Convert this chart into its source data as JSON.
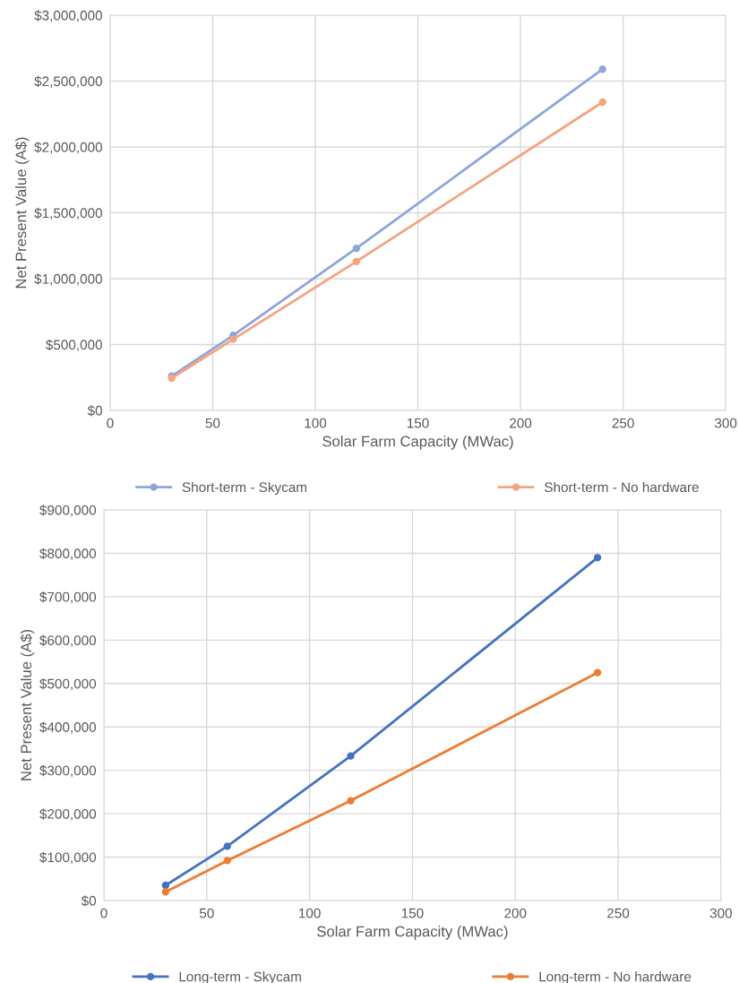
{
  "chart_data": [
    {
      "type": "line",
      "xlabel": "Solar Farm Capacity (MWac)",
      "ylabel": "Net Present Value (A$)",
      "x": [
        30,
        60,
        120,
        240
      ],
      "series": [
        {
          "name": "Short-term - Skycam",
          "color": "#8ea5dc",
          "values": [
            260000,
            570000,
            1230000,
            2590000
          ]
        },
        {
          "name": "Short-term - No hardware",
          "color": "#f4a47e",
          "values": [
            245000,
            540000,
            1130000,
            2340000
          ]
        }
      ],
      "xlim": [
        0,
        300
      ],
      "xticks": [
        0,
        50,
        100,
        150,
        200,
        250,
        300
      ],
      "ylim": [
        0,
        3000000
      ],
      "yticks": [
        {
          "value": 0,
          "label": "$0"
        },
        {
          "value": 500000,
          "label": "$500,000"
        },
        {
          "value": 1000000,
          "label": "$1,000,000"
        },
        {
          "value": 1500000,
          "label": "$1,500,000"
        },
        {
          "value": 2000000,
          "label": "$2,000,000"
        },
        {
          "value": 2500000,
          "label": "$2,500,000"
        },
        {
          "value": 3000000,
          "label": "$3,000,000"
        }
      ],
      "grid": true,
      "legend": "bottom",
      "marker": "circle",
      "line_style": "solid"
    },
    {
      "type": "line",
      "xlabel": "Solar Farm Capacity (MWac)",
      "ylabel": "Net Present Value (A$)",
      "x": [
        30,
        60,
        120,
        240
      ],
      "series": [
        {
          "name": "Long-term - Skycam",
          "color": "#4472c4",
          "values": [
            35000,
            125000,
            333000,
            790000
          ]
        },
        {
          "name": "Long-term - No hardware",
          "color": "#ed7d31",
          "values": [
            20000,
            92000,
            230000,
            525000
          ]
        }
      ],
      "xlim": [
        0,
        300
      ],
      "xticks": [
        0,
        50,
        100,
        150,
        200,
        250,
        300
      ],
      "ylim": [
        0,
        900000
      ],
      "yticks": [
        {
          "value": 0,
          "label": "$0"
        },
        {
          "value": 100000,
          "label": "$100,000"
        },
        {
          "value": 200000,
          "label": "$200,000"
        },
        {
          "value": 300000,
          "label": "$300,000"
        },
        {
          "value": 400000,
          "label": "$400,000"
        },
        {
          "value": 500000,
          "label": "$500,000"
        },
        {
          "value": 600000,
          "label": "$600,000"
        },
        {
          "value": 700000,
          "label": "$700,000"
        },
        {
          "value": 800000,
          "label": "$800,000"
        },
        {
          "value": 900000,
          "label": "$900,000"
        }
      ],
      "grid": true,
      "legend": "bottom",
      "marker": "circle",
      "line_style": "solid"
    }
  ]
}
